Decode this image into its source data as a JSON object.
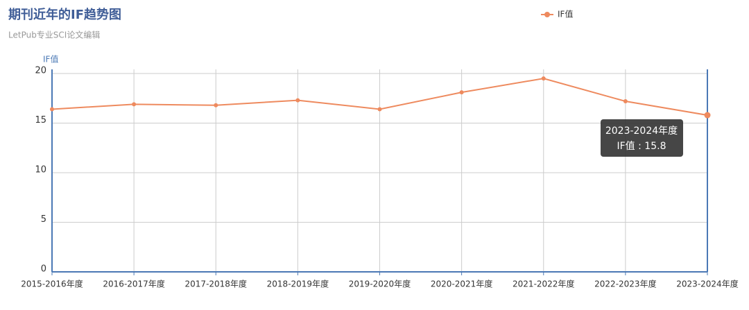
{
  "chart_data": {
    "type": "line",
    "title": "期刊近年的IF趋势图",
    "subtitle": "LetPub专业SCI论文编辑",
    "y_label": "IF值",
    "categories": [
      "2015-2016年度",
      "2016-2017年度",
      "2017-2018年度",
      "2018-2019年度",
      "2019-2020年度",
      "2020-2021年度",
      "2021-2022年度",
      "2022-2023年度",
      "2023-2024年度"
    ],
    "series": [
      {
        "name": "IF值",
        "color": "#ee8a5e",
        "values": [
          16.4,
          16.9,
          16.8,
          17.3,
          16.4,
          18.1,
          19.5,
          17.2,
          15.8
        ]
      }
    ],
    "ylim": [
      0,
      20
    ],
    "yticks": [
      0,
      5,
      10,
      15,
      20
    ],
    "grid": true,
    "legend": "top",
    "tooltip": {
      "title": "2023-2024年度",
      "text": "IF值 : 15.8"
    }
  }
}
